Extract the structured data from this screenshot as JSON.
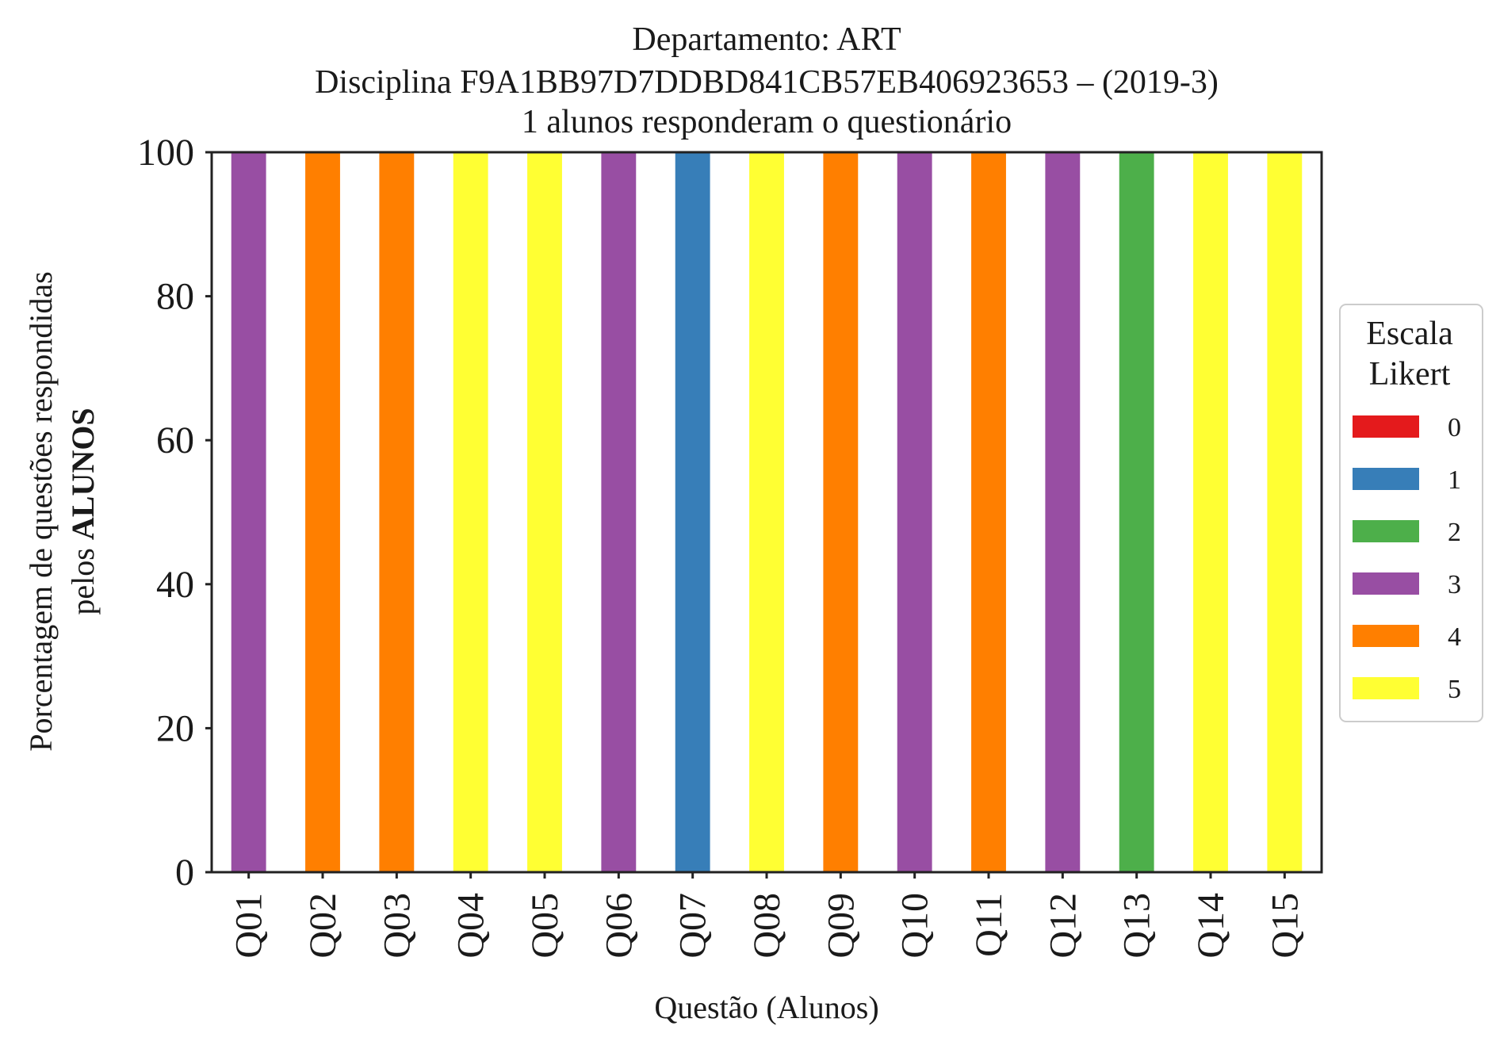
{
  "chart_data": {
    "type": "bar",
    "stacked": true,
    "title_lines": [
      "Departamento: ART",
      "Disciplina F9A1BB97D7DDBD841CB57EB406923653 – (2019-3)",
      "1 alunos responderam o questionário"
    ],
    "xlabel": "Questão (Alunos)",
    "ylabel_line1": "Porcentagem de questões respondidas",
    "ylabel_line2_prefix": "pelos ",
    "ylabel_line2_bold": "ALUNOS",
    "ylim": [
      0,
      100
    ],
    "yticks": [
      "0",
      "20",
      "40",
      "60",
      "80",
      "100"
    ],
    "categories": [
      "Q01",
      "Q02",
      "Q03",
      "Q04",
      "Q05",
      "Q06",
      "Q07",
      "Q08",
      "Q09",
      "Q10",
      "Q11",
      "Q12",
      "Q13",
      "Q14",
      "Q15"
    ],
    "series": [
      {
        "name": "0",
        "color": "#e41a1c",
        "values": [
          0,
          0,
          0,
          0,
          0,
          0,
          0,
          0,
          0,
          0,
          0,
          0,
          0,
          0,
          0
        ]
      },
      {
        "name": "1",
        "color": "#377eb8",
        "values": [
          0,
          0,
          0,
          0,
          0,
          0,
          100,
          0,
          0,
          0,
          0,
          0,
          0,
          0,
          0
        ]
      },
      {
        "name": "2",
        "color": "#4daf4a",
        "values": [
          0,
          0,
          0,
          0,
          0,
          0,
          0,
          0,
          0,
          0,
          0,
          0,
          100,
          0,
          0
        ]
      },
      {
        "name": "3",
        "color": "#984ea3",
        "values": [
          100,
          0,
          0,
          0,
          0,
          100,
          0,
          0,
          0,
          100,
          0,
          100,
          0,
          0,
          0
        ]
      },
      {
        "name": "4",
        "color": "#ff7f00",
        "values": [
          0,
          100,
          100,
          0,
          0,
          0,
          0,
          0,
          100,
          0,
          100,
          0,
          0,
          0,
          0
        ]
      },
      {
        "name": "5",
        "color": "#ffff33",
        "values": [
          0,
          0,
          0,
          100,
          100,
          0,
          0,
          100,
          0,
          0,
          0,
          0,
          0,
          100,
          100
        ]
      }
    ],
    "legend": {
      "title_lines": [
        "Escala",
        "Likert"
      ],
      "placement": "right"
    },
    "grid": false
  }
}
